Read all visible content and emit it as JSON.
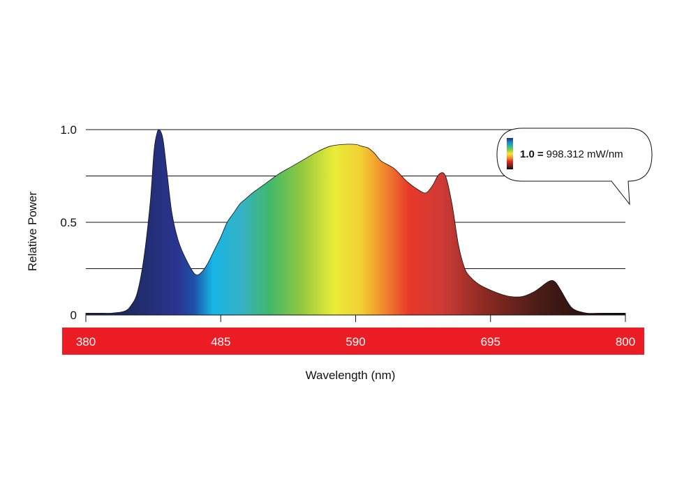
{
  "chart_data": {
    "type": "area",
    "title": "",
    "xlabel": "Wavelength (nm)",
    "ylabel": "Relative Power",
    "xlim": [
      380,
      800
    ],
    "ylim": [
      0,
      1.0
    ],
    "x_ticks": [
      "380",
      "485",
      "590",
      "695",
      "800"
    ],
    "y_ticks": [
      "0",
      "0.5",
      "1.0"
    ],
    "y_gridlines": [
      0.25,
      0.5,
      0.75,
      1.0
    ],
    "grid": true,
    "x_axis_band_color": "#ec1c24",
    "fill": "visible-spectrum gradient",
    "series": [
      {
        "x": [
          380,
          390,
          400,
          410,
          415,
          420,
          425,
          430,
          433,
          435,
          437,
          440,
          443,
          447,
          452,
          458,
          465,
          470,
          475,
          480,
          485,
          490,
          495,
          500,
          505,
          510,
          520,
          530,
          540,
          550,
          560,
          570,
          580,
          590,
          595,
          600,
          605,
          610,
          620,
          630,
          640,
          645,
          650,
          655,
          660,
          665,
          670,
          675,
          680,
          685,
          690,
          700,
          710,
          720,
          730,
          740,
          745,
          750,
          755,
          760,
          770,
          780,
          790,
          800
        ],
        "y": [
          0.01,
          0.01,
          0.01,
          0.02,
          0.05,
          0.12,
          0.3,
          0.6,
          0.88,
          0.97,
          1.0,
          0.95,
          0.78,
          0.55,
          0.4,
          0.3,
          0.22,
          0.23,
          0.28,
          0.35,
          0.42,
          0.5,
          0.55,
          0.6,
          0.63,
          0.66,
          0.71,
          0.76,
          0.8,
          0.84,
          0.88,
          0.91,
          0.92,
          0.92,
          0.91,
          0.9,
          0.87,
          0.83,
          0.79,
          0.72,
          0.67,
          0.66,
          0.7,
          0.76,
          0.75,
          0.6,
          0.38,
          0.25,
          0.2,
          0.17,
          0.15,
          0.12,
          0.1,
          0.1,
          0.13,
          0.18,
          0.18,
          0.13,
          0.07,
          0.03,
          0.01,
          0.01,
          0.01,
          0.01
        ]
      }
    ],
    "callout": {
      "value": "1.0",
      "equals": "=",
      "unit_text": "998.312 mW/nm",
      "scale_colors": [
        "#1b2a6e",
        "#1f7fd0",
        "#2ab6a0",
        "#8cc63f",
        "#f4e53a",
        "#f39a2b",
        "#e0262a",
        "#7e2316",
        "#1a0b0b"
      ]
    }
  }
}
